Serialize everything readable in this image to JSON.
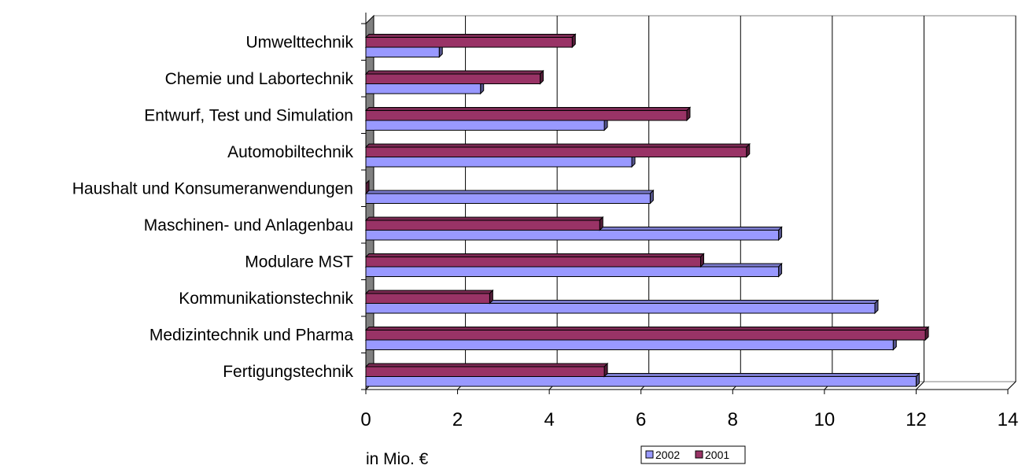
{
  "chart_data": {
    "type": "bar",
    "orientation": "horizontal",
    "style": "3d",
    "categories": [
      "Fertigungstechnik",
      "Medizintechnik und Pharma",
      "Kommunikationstechnik",
      "Modulare MST",
      "Maschinen- und Anlagenbau",
      "Haushalt und Konsumeranwendungen",
      "Automobiltechnik",
      "Entwurf, Test und Simulation",
      "Chemie und Labortechnik",
      "Umwelttechnik"
    ],
    "series": [
      {
        "name": "2002",
        "color": "#9999FF",
        "values": [
          12.0,
          11.5,
          11.1,
          9.0,
          9.0,
          6.2,
          5.8,
          5.2,
          2.5,
          1.6
        ]
      },
      {
        "name": "2001",
        "color": "#993366",
        "values": [
          5.2,
          12.2,
          2.7,
          7.3,
          5.1,
          0.0,
          8.3,
          7.0,
          3.8,
          4.5
        ]
      }
    ],
    "xlim": [
      0,
      14
    ],
    "xticks": [
      "0",
      "2",
      "4",
      "6",
      "8",
      "10",
      "12",
      "14"
    ],
    "xlabel": "in Mio. €",
    "grid": true,
    "legend_position": "bottom"
  }
}
